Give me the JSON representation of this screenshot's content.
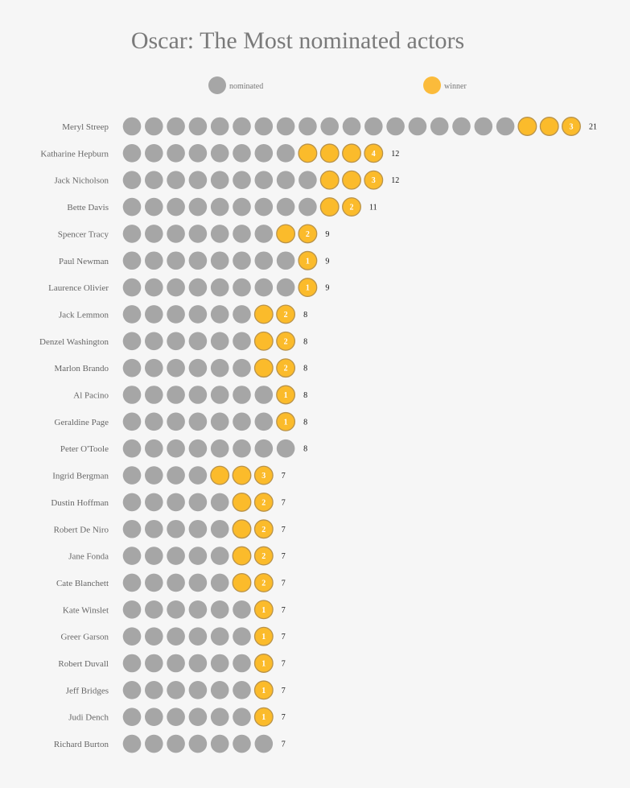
{
  "chart_data": {
    "type": "dot-matrix",
    "title": "Oscar: The Most nominated actors",
    "legend": [
      {
        "label": "nominated",
        "color": "#a6a6a6"
      },
      {
        "label": "winner",
        "color": "#fbbb3b"
      }
    ],
    "colors": {
      "nominated": "#a6a6a6",
      "winner": "#fbbb2b",
      "winner_stroke": "#b8924a",
      "background": "#f6f6f6"
    },
    "actors": [
      {
        "name": "Meryl Streep",
        "nominations": 21,
        "wins": 3
      },
      {
        "name": "Katharine Hepburn",
        "nominations": 12,
        "wins": 4
      },
      {
        "name": "Jack Nicholson",
        "nominations": 12,
        "wins": 3
      },
      {
        "name": "Bette Davis",
        "nominations": 11,
        "wins": 2
      },
      {
        "name": "Spencer Tracy",
        "nominations": 9,
        "wins": 2
      },
      {
        "name": "Paul Newman",
        "nominations": 9,
        "wins": 1
      },
      {
        "name": "Laurence Olivier",
        "nominations": 9,
        "wins": 1
      },
      {
        "name": "Jack Lemmon",
        "nominations": 8,
        "wins": 2
      },
      {
        "name": "Denzel Washington",
        "nominations": 8,
        "wins": 2
      },
      {
        "name": "Marlon Brando",
        "nominations": 8,
        "wins": 2
      },
      {
        "name": "Al Pacino",
        "nominations": 8,
        "wins": 1
      },
      {
        "name": "Geraldine Page",
        "nominations": 8,
        "wins": 1
      },
      {
        "name": "Peter O'Toole",
        "nominations": 8,
        "wins": 0
      },
      {
        "name": "Ingrid Bergman",
        "nominations": 7,
        "wins": 3
      },
      {
        "name": "Dustin Hoffman",
        "nominations": 7,
        "wins": 2
      },
      {
        "name": "Robert De Niro",
        "nominations": 7,
        "wins": 2
      },
      {
        "name": "Jane Fonda",
        "nominations": 7,
        "wins": 2
      },
      {
        "name": "Cate Blanchett",
        "nominations": 7,
        "wins": 2
      },
      {
        "name": "Kate Winslet",
        "nominations": 7,
        "wins": 1
      },
      {
        "name": "Greer Garson",
        "nominations": 7,
        "wins": 1
      },
      {
        "name": "Robert Duvall",
        "nominations": 7,
        "wins": 1
      },
      {
        "name": "Jeff Bridges",
        "nominations": 7,
        "wins": 1
      },
      {
        "name": "Judi Dench",
        "nominations": 7,
        "wins": 1
      },
      {
        "name": "Richard Burton",
        "nominations": 7,
        "wins": 0
      }
    ]
  }
}
